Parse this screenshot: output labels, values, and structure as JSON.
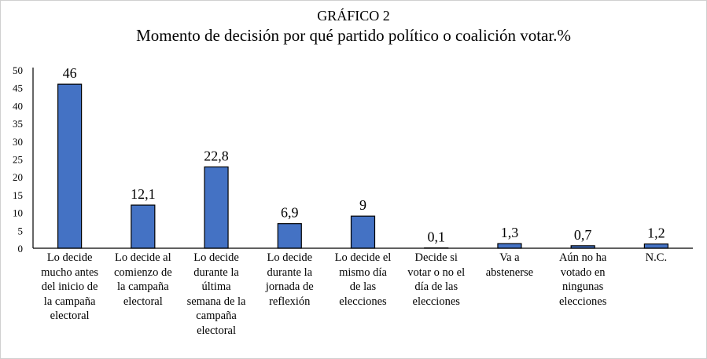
{
  "chart_data": {
    "type": "bar",
    "title": "GRÁFICO 2",
    "subtitle": "Momento de decisión por qué partido político o coalición votar.%",
    "categories": [
      "Lo decide\nmucho antes\ndel inicio de\nla campaña\nelectoral",
      "Lo decide al\ncomienzo de\nla campaña\nelectoral",
      "Lo decide\ndurante la\núltima\nsemana de la\ncampaña\nelectoral",
      "Lo decide\ndurante la\njornada de\nreflexión",
      "Lo decide el\nmismo día\nde las\nelecciones",
      "Decide si\nvotar o no el\ndía de las\nelecciones",
      "Va a\nabstenerse",
      "Aún no ha\nvotado en\nningunas\nelecciones",
      "N.C."
    ],
    "values": [
      46,
      12.1,
      22.8,
      6.9,
      9,
      0.1,
      1.3,
      0.7,
      1.2
    ],
    "data_labels": [
      "46",
      "12,1",
      "22,8",
      "6,9",
      "9",
      "0,1",
      "1,3",
      "0,7",
      "1,2"
    ],
    "yticks": [
      "0",
      "5",
      "10",
      "15",
      "20",
      "25",
      "30",
      "35",
      "40",
      "45",
      "50"
    ],
    "ylim": [
      0,
      50
    ],
    "xlabel": "",
    "ylabel": "",
    "grid": false,
    "bar_color": "#4472C4"
  }
}
